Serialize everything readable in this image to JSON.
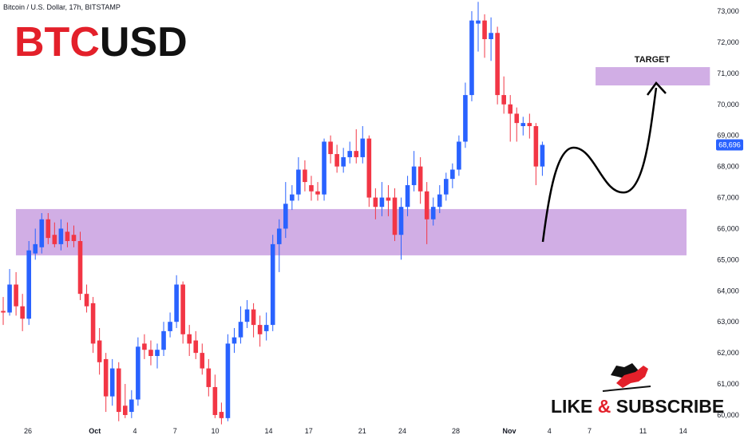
{
  "chart_data": {
    "type": "candlestick",
    "subtitle": "Bitcoin / U.S. Dollar, 17h, BITSTAMP",
    "title": [
      "BTC",
      "USD"
    ],
    "badge": [
      "LIKE",
      "&",
      "SUBSCRIBE"
    ],
    "target_label": "TARGET",
    "up_color": "#2962ff",
    "down_color": "#f23645",
    "zone_color": "#c9a0e0",
    "grid": false,
    "xlim": [
      -2.09,
      51.34
    ],
    "ylim": [
      59228,
      73360
    ],
    "xticks": [
      {
        "value": 0,
        "label": "26"
      },
      {
        "value": 5,
        "label": "Oct"
      },
      {
        "value": 8,
        "label": "4"
      },
      {
        "value": 11,
        "label": "7"
      },
      {
        "value": 14,
        "label": "10"
      },
      {
        "value": 18,
        "label": "14"
      },
      {
        "value": 21,
        "label": "17"
      },
      {
        "value": 25,
        "label": "21"
      },
      {
        "value": 28,
        "label": "24"
      },
      {
        "value": 32,
        "label": "28"
      },
      {
        "value": 36,
        "label": "Nov"
      },
      {
        "value": 39,
        "label": "4"
      },
      {
        "value": 42,
        "label": "7"
      },
      {
        "value": 46,
        "label": "11"
      },
      {
        "value": 49,
        "label": "14"
      }
    ],
    "yticks": [
      {
        "value": 60000,
        "label": "60,000"
      },
      {
        "value": 61000,
        "label": "61,000"
      },
      {
        "value": 62000,
        "label": "62,000"
      },
      {
        "value": 63000,
        "label": "63,000"
      },
      {
        "value": 64000,
        "label": "64,000"
      },
      {
        "value": 65000,
        "label": "65,000"
      },
      {
        "value": 66000,
        "label": "66,000"
      },
      {
        "value": 67000,
        "label": "67,000"
      },
      {
        "value": 68000,
        "label": "68,000"
      },
      {
        "value": 69000,
        "label": "69,000"
      },
      {
        "value": 70000,
        "label": "70,000"
      },
      {
        "value": 71000,
        "label": "71,000"
      },
      {
        "value": 72000,
        "label": "72,000"
      },
      {
        "value": 73000,
        "label": "73,000"
      }
    ],
    "last_price": {
      "value": 68696,
      "label": "68,696"
    },
    "zones": [
      {
        "x": [
          -0.9,
          49.25
        ],
        "y": [
          65140,
          66630
        ]
      },
      {
        "x": [
          42.45,
          51.0
        ],
        "y": [
          70610,
          71200
        ]
      }
    ],
    "candles": {
      "x": [
        -1.85,
        -1.37,
        -0.89,
        -0.41,
        0.07,
        0.55,
        1.03,
        1.51,
        1.99,
        2.47,
        2.95,
        3.43,
        3.91,
        4.39,
        4.87,
        5.35,
        5.83,
        6.31,
        6.79,
        7.27,
        7.75,
        8.23,
        8.71,
        9.19,
        9.67,
        10.15,
        10.63,
        11.11,
        11.59,
        12.07,
        12.55,
        13.03,
        13.51,
        13.99,
        14.47,
        14.95,
        15.43,
        15.91,
        16.39,
        16.87,
        17.35,
        17.83,
        18.31,
        18.79,
        19.27,
        19.75,
        20.23,
        20.71,
        21.19,
        21.67,
        22.15,
        22.63,
        23.11,
        23.59,
        24.07,
        24.55,
        25.03,
        25.51,
        25.99,
        26.47,
        26.95,
        27.43,
        27.91,
        28.39,
        28.87,
        29.35,
        29.83,
        30.31,
        30.79,
        31.27,
        31.75,
        32.23,
        32.71,
        33.19,
        33.67,
        34.15,
        34.63,
        35.11,
        35.59,
        36.07,
        36.55,
        37.03,
        37.51,
        37.99,
        38.47
      ],
      "open": [
        63350,
        63300,
        64200,
        63500,
        63100,
        65200,
        65400,
        66300,
        65800,
        65500,
        65900,
        65800,
        65600,
        63900,
        63600,
        62400,
        61800,
        60600,
        61500,
        60300,
        60100,
        60500,
        62300,
        62100,
        61900,
        62100,
        62700,
        63000,
        64200,
        62600,
        62400,
        62000,
        61500,
        60900,
        60100,
        59900,
        62300,
        62500,
        63000,
        63400,
        62900,
        62700,
        62900,
        65500,
        66000,
        66900,
        67100,
        67900,
        67400,
        67200,
        67100,
        68800,
        68400,
        68000,
        68300,
        68500,
        68300,
        68900,
        67000,
        66700,
        67000,
        67000,
        65800,
        66700,
        67400,
        68000,
        67200,
        66300,
        66700,
        67100,
        67600,
        67900,
        68800,
        70300,
        72600,
        72700,
        72100,
        72300,
        70300,
        70000,
        69700,
        69300,
        69400,
        69300,
        68000
      ],
      "high": [
        63800,
        64700,
        64600,
        63900,
        65600,
        66000,
        66500,
        66500,
        66200,
        66300,
        66200,
        66100,
        65900,
        64200,
        63800,
        62800,
        62000,
        61800,
        61700,
        61000,
        60800,
        62500,
        62600,
        62400,
        62300,
        63000,
        63300,
        64500,
        64300,
        62900,
        62700,
        62300,
        61800,
        61300,
        60400,
        62600,
        62800,
        63500,
        63700,
        63600,
        63200,
        63300,
        65800,
        66300,
        67500,
        67400,
        68300,
        68200,
        67700,
        67500,
        68900,
        69000,
        68700,
        68600,
        68800,
        69200,
        69300,
        69000,
        67300,
        67500,
        67400,
        67300,
        67000,
        67700,
        68500,
        68300,
        67500,
        67000,
        67400,
        67800,
        68100,
        69000,
        70700,
        73000,
        73300,
        72900,
        72800,
        72500,
        70900,
        70300,
        69900,
        69600,
        69700,
        69400,
        68800
      ],
      "low": [
        62900,
        63200,
        63200,
        62700,
        62900,
        65000,
        65200,
        65500,
        65400,
        65300,
        65400,
        65400,
        63700,
        63300,
        62000,
        61300,
        60100,
        60300,
        59800,
        59900,
        59900,
        60300,
        61800,
        61600,
        61500,
        61900,
        62500,
        62800,
        62300,
        61900,
        61800,
        61300,
        60600,
        59900,
        59700,
        59800,
        62000,
        62300,
        62800,
        62500,
        62200,
        62400,
        62700,
        64600,
        65700,
        66600,
        66900,
        67200,
        66900,
        66900,
        66900,
        68100,
        67800,
        67800,
        68100,
        68100,
        68100,
        66700,
        66300,
        66400,
        66400,
        65600,
        65000,
        66400,
        67200,
        66800,
        65500,
        66100,
        66500,
        66900,
        67300,
        67700,
        68600,
        70100,
        71700,
        71500,
        71400,
        70000,
        69700,
        68800,
        68800,
        69000,
        68900,
        67400,
        67700
      ],
      "close": [
        63300,
        64200,
        63500,
        63100,
        65300,
        65500,
        66300,
        65700,
        65500,
        66000,
        65600,
        65600,
        63900,
        63500,
        62300,
        61700,
        60600,
        61500,
        60100,
        60000,
        60500,
        62200,
        62100,
        61900,
        62100,
        62700,
        63000,
        64200,
        62600,
        62300,
        62000,
        61500,
        60900,
        60000,
        59900,
        62300,
        62500,
        63000,
        63400,
        62900,
        62600,
        62900,
        65500,
        66000,
        66800,
        67100,
        67900,
        67500,
        67200,
        67100,
        68800,
        68400,
        68000,
        68300,
        68500,
        68300,
        68900,
        67000,
        66700,
        67000,
        66900,
        65800,
        66700,
        67400,
        68000,
        67200,
        66300,
        66700,
        67100,
        67600,
        67900,
        68800,
        70300,
        72700,
        72700,
        72100,
        72300,
        70300,
        70000,
        69700,
        69400,
        69400,
        69300,
        68000,
        68696
      ]
    }
  }
}
